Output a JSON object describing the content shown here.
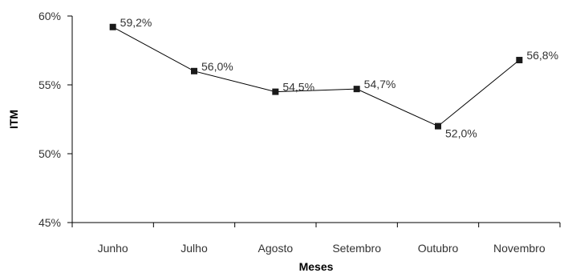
{
  "chart_data": {
    "type": "line",
    "categories": [
      "Junho",
      "Julho",
      "Agosto",
      "Setembro",
      "Outubro",
      "Novembro"
    ],
    "series": [
      {
        "values": [
          59.2,
          56.0,
          54.5,
          54.7,
          52.0,
          56.8
        ],
        "color": "#000000"
      }
    ],
    "data_labels": [
      "59,2%",
      "56,0%",
      "54,5%",
      "54,7%",
      "52,0%",
      "56,8%"
    ],
    "title": "",
    "xlabel": "Meses",
    "ylabel": "ITM",
    "ylim": [
      45,
      60
    ],
    "yticks": [
      45,
      50,
      55,
      60
    ],
    "ytick_labels": [
      "45%",
      "50%",
      "55%",
      "60%"
    ],
    "grid": false,
    "legend": "none"
  }
}
